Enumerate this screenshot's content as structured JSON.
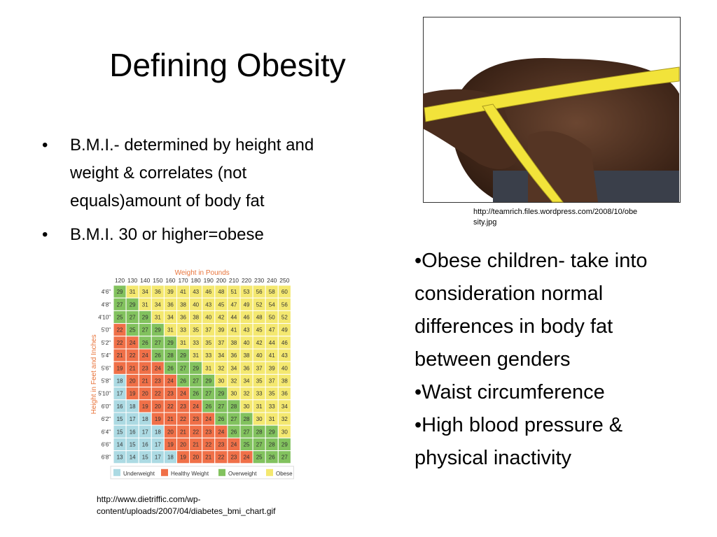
{
  "title": "Defining Obesity",
  "left_bullets": [
    "B.M.I.- determined by height and weight & correlates (not equals)amount of body fat",
    "B.M.I. 30 or higher=obese"
  ],
  "image_caption": "http://teamrich.files.wordpress.com/2008/10/obesity.jpg",
  "right_bullets": [
    "Obese children- take into consideration normal differences in body fat between genders",
    "Waist circumference",
    "High blood pressure & physical inactivity"
  ],
  "bmi_chart": {
    "title": "Weight in Pounds",
    "y_label": "Height in Feet and Inches",
    "columns": [
      120,
      130,
      140,
      150,
      160,
      170,
      180,
      190,
      200,
      210,
      220,
      230,
      240,
      250
    ],
    "rows": [
      {
        "label": "4'6\"",
        "values": [
          29,
          31,
          34,
          36,
          39,
          41,
          43,
          46,
          48,
          51,
          53,
          56,
          58,
          60
        ]
      },
      {
        "label": "4'8\"",
        "values": [
          27,
          29,
          31,
          34,
          36,
          38,
          40,
          43,
          45,
          47,
          49,
          52,
          54,
          56
        ]
      },
      {
        "label": "4'10\"",
        "values": [
          25,
          27,
          29,
          31,
          34,
          36,
          38,
          40,
          42,
          44,
          46,
          48,
          50,
          52
        ]
      },
      {
        "label": "5'0\"",
        "values": [
          22,
          25,
          27,
          29,
          31,
          33,
          35,
          37,
          39,
          41,
          43,
          45,
          47,
          49
        ]
      },
      {
        "label": "5'2\"",
        "values": [
          22,
          24,
          26,
          27,
          29,
          31,
          33,
          35,
          37,
          38,
          40,
          42,
          44,
          46
        ]
      },
      {
        "label": "5'4\"",
        "values": [
          21,
          22,
          24,
          26,
          28,
          29,
          31,
          33,
          34,
          36,
          38,
          40,
          41,
          43
        ]
      },
      {
        "label": "5'6\"",
        "values": [
          19,
          21,
          23,
          24,
          26,
          27,
          29,
          31,
          32,
          34,
          36,
          37,
          39,
          40
        ]
      },
      {
        "label": "5'8\"",
        "values": [
          18,
          20,
          21,
          23,
          24,
          26,
          27,
          29,
          30,
          32,
          34,
          35,
          37,
          38
        ]
      },
      {
        "label": "5'10\"",
        "values": [
          17,
          19,
          20,
          22,
          23,
          24,
          26,
          27,
          29,
          30,
          32,
          33,
          35,
          36
        ]
      },
      {
        "label": "6'0\"",
        "values": [
          16,
          18,
          19,
          20,
          22,
          23,
          24,
          26,
          27,
          28,
          30,
          31,
          33,
          34
        ]
      },
      {
        "label": "6'2\"",
        "values": [
          15,
          17,
          18,
          19,
          21,
          22,
          23,
          24,
          26,
          27,
          28,
          30,
          31,
          32
        ]
      },
      {
        "label": "6'4\"",
        "values": [
          15,
          16,
          17,
          18,
          20,
          21,
          22,
          23,
          24,
          26,
          27,
          28,
          29,
          30
        ]
      },
      {
        "label": "6'6\"",
        "values": [
          14,
          15,
          16,
          17,
          19,
          20,
          21,
          22,
          23,
          24,
          25,
          27,
          28,
          29
        ]
      },
      {
        "label": "6'8\"",
        "values": [
          13,
          14,
          15,
          17,
          18,
          19,
          20,
          21,
          22,
          23,
          24,
          25,
          26,
          27
        ]
      }
    ],
    "legend": [
      {
        "label": "Underweight",
        "color": "#acdae3"
      },
      {
        "label": "Healthy Weight",
        "color": "#f07048"
      },
      {
        "label": "Overweight",
        "color": "#82c25e"
      },
      {
        "label": "Obese",
        "color": "#f4e870"
      }
    ]
  },
  "chart_caption": "http://www.dietriffic.com/wp-content/uploads/2007/04/diabetes_bmi_chart.gif"
}
